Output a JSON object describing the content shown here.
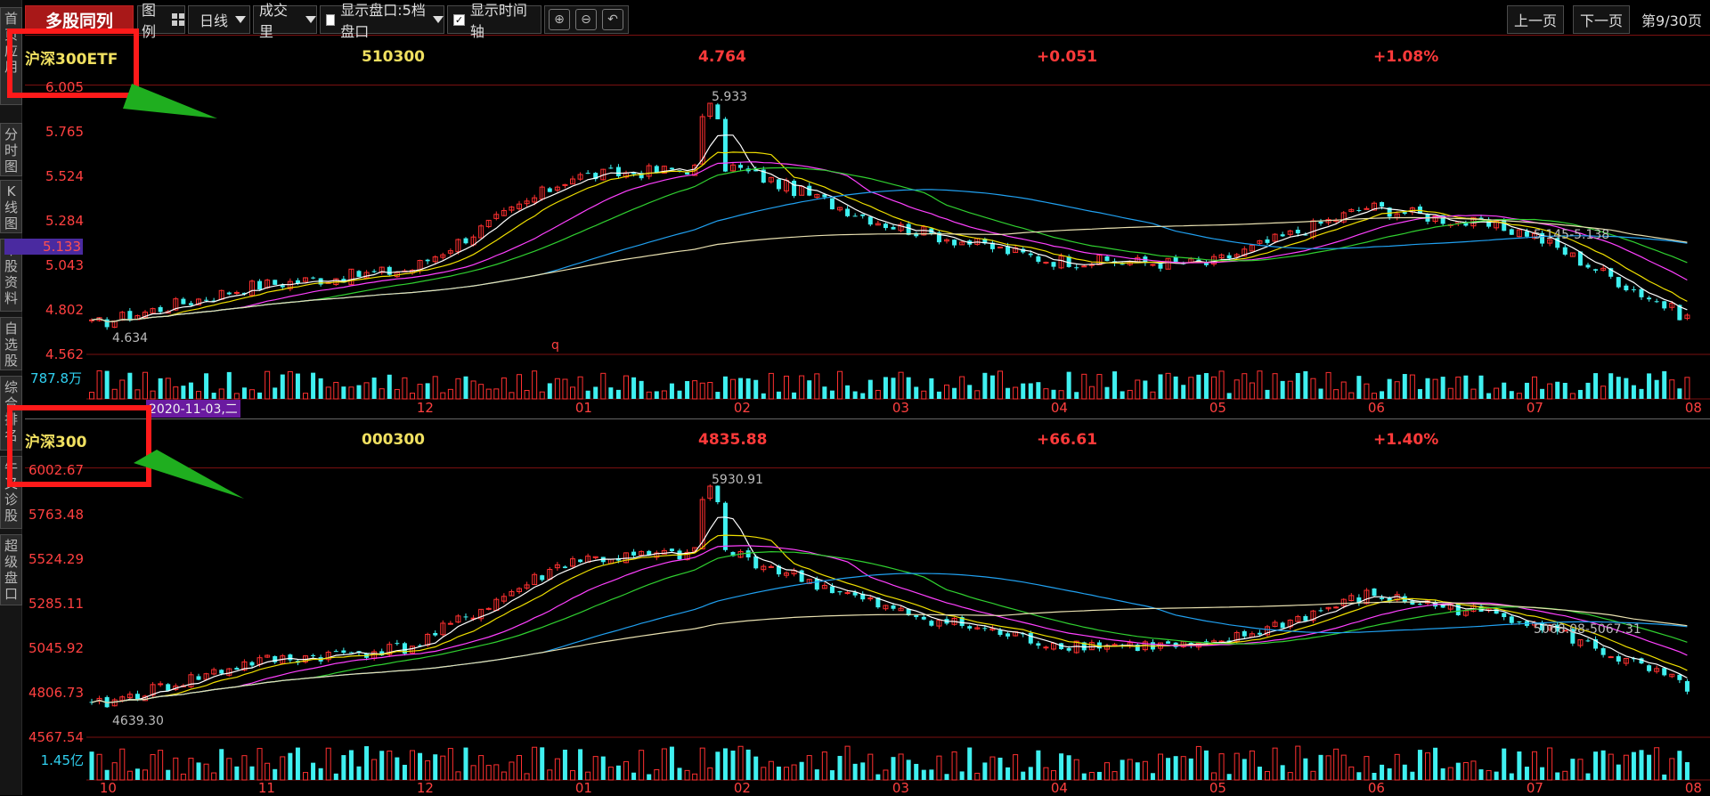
{
  "sidebar": {
    "tabs": [
      {
        "label": "首页应用"
      },
      {
        "label": "分时图"
      },
      {
        "label": "K线图"
      },
      {
        "label": "个股资料"
      },
      {
        "label": "自选股"
      },
      {
        "label": "综合排名"
      },
      {
        "label": "牛叉诊股"
      },
      {
        "label": "超级盘口"
      }
    ]
  },
  "toolbar": {
    "title": "多股同列",
    "legend_label": "图例",
    "period_label": "日线",
    "indicator_label": "成交里",
    "show_depth_label": "显示盘口:5档盘口",
    "show_timeline_label": "显示时间轴",
    "prev_page": "上一页",
    "next_page": "下一页",
    "page_indicator": "第9/30页"
  },
  "panels": [
    {
      "name": "沪深300ETF",
      "code": "510300",
      "price": "4.764",
      "change": "+0.051",
      "change_pct": "+1.08%",
      "y_labels": [
        "6.005",
        "5.765",
        "5.524",
        "5.284",
        "5.043",
        "4.802",
        "4.562"
      ],
      "current_marker": "5.133",
      "high_label": "5.933",
      "low_label": "4.634",
      "ma_note": "5.145-5.138",
      "volume_label": "787.8万",
      "q_marker": "q",
      "date_tag": "2020-11-03,二",
      "x_labels": [
        "12",
        "01",
        "02",
        "03",
        "04",
        "05",
        "06",
        "07",
        "08"
      ]
    },
    {
      "name": "沪深300",
      "code": "000300",
      "price": "4835.88",
      "change": "+66.61",
      "change_pct": "+1.40%",
      "y_labels": [
        "6002.67",
        "5763.48",
        "5524.29",
        "5285.11",
        "5045.92",
        "4806.73",
        "4567.54"
      ],
      "high_label": "5930.91",
      "low_label": "4639.30",
      "ma_note": "5068.08-5067.31",
      "volume_label": "1.45亿",
      "x_labels": [
        "10",
        "11",
        "12",
        "01",
        "02",
        "03",
        "04",
        "05",
        "06",
        "07",
        "08"
      ]
    }
  ],
  "colors": {
    "up": "#ff3030",
    "down": "#3ff0f0",
    "ma5": "#ffffff",
    "ma10": "#f0e000",
    "ma20": "#ff40ff",
    "ma30": "#30d030",
    "ma60": "#20a0f0",
    "ma120": "#e8e0b0",
    "annotation": "#ff1a1a",
    "arrow": "#20b020"
  },
  "chart_data": [
    {
      "type": "candlestick",
      "series_name": "沪深300ETF",
      "x": [
        "10",
        "11",
        "12",
        "01",
        "02",
        "03",
        "04",
        "05",
        "06",
        "07",
        "08"
      ],
      "close": [
        4.72,
        4.93,
        5.02,
        5.52,
        5.58,
        5.26,
        5.07,
        5.05,
        5.36,
        5.22,
        4.76
      ],
      "high": 5.933,
      "low": 4.634,
      "ylim": [
        4.562,
        6.005
      ]
    },
    {
      "type": "candlestick",
      "series_name": "沪深300",
      "x": [
        "10",
        "11",
        "12",
        "01",
        "02",
        "03",
        "04",
        "05",
        "06",
        "07",
        "08"
      ],
      "close": [
        4730,
        4970,
        5050,
        5520,
        5560,
        5250,
        5070,
        5050,
        5330,
        5200,
        4836
      ],
      "high": 5930.91,
      "low": 4639.3,
      "ylim": [
        4567.54,
        6002.67
      ]
    }
  ]
}
